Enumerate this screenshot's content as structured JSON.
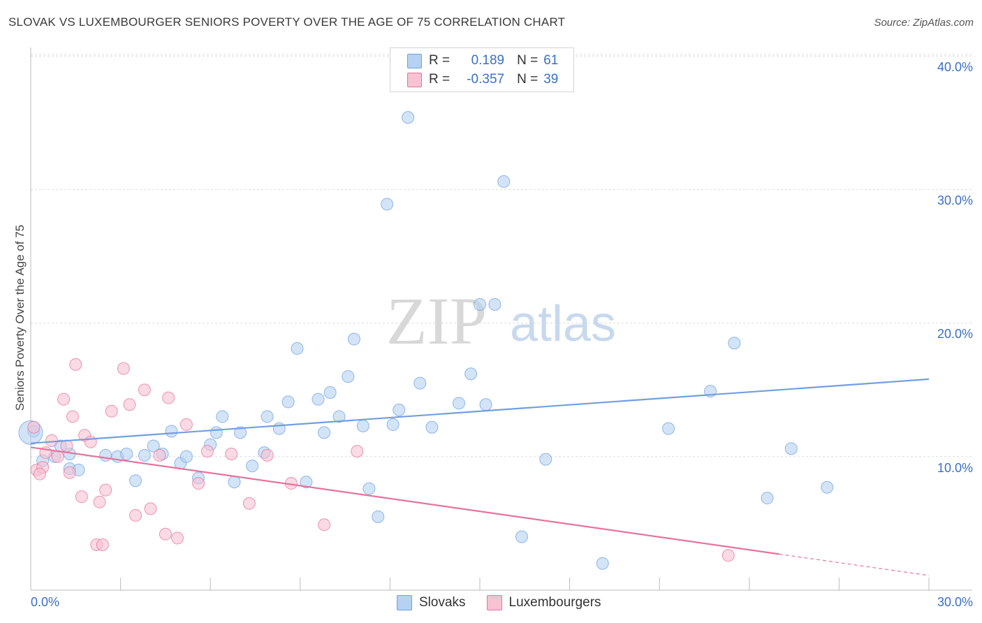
{
  "title": "SLOVAK VS LUXEMBOURGER SENIORS POVERTY OVER THE AGE OF 75 CORRELATION CHART",
  "source": "Source: ZipAtlas.com",
  "legend": {
    "rows": [
      {
        "r_label": "R =",
        "r_value": "0.189",
        "n_label": "N =",
        "n_value": "61",
        "color": "#b6d2f2"
      },
      {
        "r_label": "R =",
        "r_value": "-0.357",
        "n_label": "N =",
        "n_value": "39",
        "color": "#f7c2d2"
      }
    ]
  },
  "watermark": {
    "part1": "ZIP",
    "part2": "atlas"
  },
  "chart_data": {
    "type": "scatter",
    "title": "SLOVAK VS LUXEMBOURGER SENIORS POVERTY OVER THE AGE OF 75 CORRELATION CHART",
    "xlabel": "",
    "ylabel": "Seniors Poverty Over the Age of 75",
    "xlim": [
      0,
      30
    ],
    "ylim": [
      0,
      41
    ],
    "x_tick_labels": [
      "0.0%",
      "30.0%"
    ],
    "y_ticks": [
      10,
      20,
      30,
      40
    ],
    "y_tick_labels": [
      "10.0%",
      "20.0%",
      "30.0%",
      "40.0%"
    ],
    "grid": true,
    "legend_position": "top-center",
    "series": [
      {
        "name": "Slovaks",
        "color": "#6fa0e0",
        "fill": "#b6d2f2",
        "trend": {
          "x": [
            0,
            30
          ],
          "y": [
            11.0,
            15.8
          ]
        },
        "points": [
          [
            0.1,
            11.9
          ],
          [
            0.4,
            9.7
          ],
          [
            0.8,
            10.0
          ],
          [
            1.0,
            10.8
          ],
          [
            1.3,
            10.2
          ],
          [
            1.3,
            9.1
          ],
          [
            1.6,
            9.0
          ],
          [
            2.5,
            10.1
          ],
          [
            2.9,
            10.0
          ],
          [
            3.2,
            10.2
          ],
          [
            3.5,
            8.2
          ],
          [
            3.8,
            10.1
          ],
          [
            4.1,
            10.8
          ],
          [
            4.4,
            10.2
          ],
          [
            4.7,
            11.9
          ],
          [
            5.0,
            9.5
          ],
          [
            5.2,
            10.0
          ],
          [
            5.6,
            8.4
          ],
          [
            6.0,
            10.9
          ],
          [
            6.2,
            11.8
          ],
          [
            6.4,
            13.0
          ],
          [
            6.8,
            8.1
          ],
          [
            7.0,
            11.8
          ],
          [
            7.4,
            9.3
          ],
          [
            7.8,
            10.3
          ],
          [
            7.9,
            13.0
          ],
          [
            8.3,
            12.1
          ],
          [
            8.6,
            14.1
          ],
          [
            8.9,
            18.1
          ],
          [
            9.2,
            8.1
          ],
          [
            9.6,
            14.3
          ],
          [
            9.8,
            11.8
          ],
          [
            10.0,
            14.8
          ],
          [
            10.3,
            13.0
          ],
          [
            10.6,
            16.0
          ],
          [
            10.8,
            18.8
          ],
          [
            11.1,
            12.3
          ],
          [
            11.3,
            7.6
          ],
          [
            11.6,
            5.5
          ],
          [
            11.9,
            28.9
          ],
          [
            12.1,
            12.4
          ],
          [
            12.3,
            13.5
          ],
          [
            12.6,
            35.4
          ],
          [
            13.0,
            15.5
          ],
          [
            13.4,
            12.2
          ],
          [
            14.3,
            14.0
          ],
          [
            14.7,
            16.2
          ],
          [
            15.0,
            21.4
          ],
          [
            15.2,
            13.9
          ],
          [
            15.5,
            21.4
          ],
          [
            15.8,
            30.6
          ],
          [
            16.4,
            4.0
          ],
          [
            17.2,
            9.8
          ],
          [
            19.1,
            2.0
          ],
          [
            21.3,
            12.1
          ],
          [
            22.7,
            14.9
          ],
          [
            23.5,
            18.5
          ],
          [
            24.6,
            6.9
          ],
          [
            25.4,
            10.6
          ],
          [
            26.6,
            7.7
          ],
          [
            0.0,
            11.8
          ]
        ]
      },
      {
        "name": "Luxembourgers",
        "color": "#e7739d",
        "fill": "#f7c2d2",
        "trend": {
          "x": [
            0,
            25
          ],
          "y": [
            10.7,
            2.7
          ]
        },
        "trend_dashed": {
          "x": [
            25,
            30
          ],
          "y": [
            2.7,
            1.1
          ]
        },
        "points": [
          [
            0.1,
            12.2
          ],
          [
            0.2,
            9.0
          ],
          [
            0.4,
            9.2
          ],
          [
            0.5,
            10.3
          ],
          [
            0.7,
            11.2
          ],
          [
            0.9,
            10.0
          ],
          [
            1.1,
            14.3
          ],
          [
            1.2,
            10.8
          ],
          [
            1.3,
            8.8
          ],
          [
            1.4,
            13.0
          ],
          [
            1.5,
            16.9
          ],
          [
            1.7,
            7.0
          ],
          [
            1.8,
            11.6
          ],
          [
            2.0,
            11.1
          ],
          [
            2.2,
            3.4
          ],
          [
            2.3,
            6.6
          ],
          [
            2.4,
            3.4
          ],
          [
            2.5,
            7.5
          ],
          [
            2.7,
            13.4
          ],
          [
            3.1,
            16.6
          ],
          [
            3.3,
            13.9
          ],
          [
            3.5,
            5.6
          ],
          [
            3.8,
            15.0
          ],
          [
            4.0,
            6.1
          ],
          [
            4.3,
            10.1
          ],
          [
            4.5,
            4.2
          ],
          [
            4.6,
            14.4
          ],
          [
            4.9,
            3.9
          ],
          [
            5.2,
            12.4
          ],
          [
            5.6,
            8.0
          ],
          [
            5.9,
            10.4
          ],
          [
            6.7,
            10.2
          ],
          [
            7.3,
            6.5
          ],
          [
            7.9,
            10.1
          ],
          [
            8.7,
            8.0
          ],
          [
            9.8,
            4.9
          ],
          [
            10.9,
            10.4
          ],
          [
            23.3,
            2.6
          ],
          [
            0.3,
            8.7
          ]
        ]
      }
    ]
  }
}
